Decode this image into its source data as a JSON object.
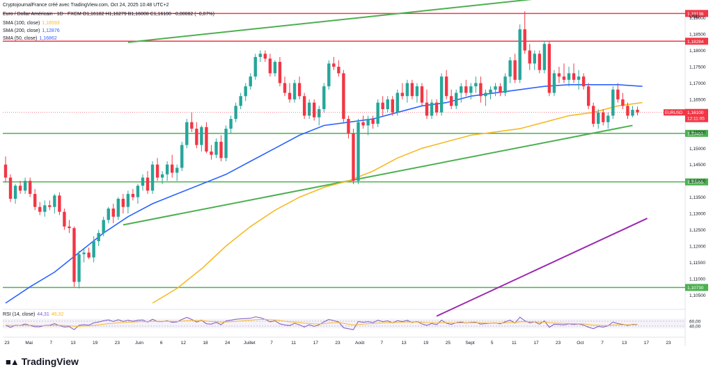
{
  "header": {
    "credit": "CryptojournalFrance créé avec TradingView.com, Oct 24, 2025 10:48 UTC+2",
    "symbol_line": "Euro / Dollar Américain · 1D · FXCM  O1,16182  H1,16279  B1,16008  C1,16100  −0,00082 (−0,07%)"
  },
  "indicators": [
    {
      "label": "SMA (100, close)",
      "value": "1,16593",
      "color": "#f7b924"
    },
    {
      "label": "SMA (200, close)",
      "value": "1,12876",
      "color": "#9c27b0"
    },
    {
      "label": "SMA (50, close)",
      "value": "1,16862",
      "color": "#2962ff"
    }
  ],
  "rsi_label": "RSI (14, close)",
  "rsi_value": "44,31",
  "rsi_ma_value": "46,32",
  "brand": "TradingView",
  "chart_data": {
    "type": "candlestick",
    "y_unit": "USD",
    "ylim": [
      1.1025,
      1.1925
    ],
    "y_ticks": [
      "1,19000",
      "1,18500",
      "1,18000",
      "1,17500",
      "1,17000",
      "1,16500",
      "1,16000",
      "1,15500",
      "1,15000",
      "1,14500",
      "1,14000",
      "1,13500",
      "1,13000",
      "1,12500",
      "1,12000",
      "1,11500",
      "1,11000",
      "1,10500"
    ],
    "x_ticks": [
      "23",
      "Mai",
      "7",
      "13",
      "19",
      "23",
      "Juin",
      "6",
      "12",
      "18",
      "24",
      "Juillet",
      "7",
      "11",
      "17",
      "23",
      "Août",
      "7",
      "13",
      "19",
      "25",
      "Sept",
      "5",
      "11",
      "17",
      "23",
      "Oct",
      "7",
      "13",
      "17",
      "23"
    ],
    "horizontal_levels": [
      {
        "value": 1.19136,
        "label": "1,19136",
        "color": "#f23645"
      },
      {
        "value": 1.18284,
        "label": "1,18284",
        "color": "#f23645"
      },
      {
        "value": 1.15457,
        "label": "1,15457",
        "color": "#4caf50"
      },
      {
        "value": 1.13968,
        "label": "1,13968",
        "color": "#4caf50"
      },
      {
        "value": 1.1073,
        "label": "1,10730",
        "color": "#4caf50"
      }
    ],
    "last_price": {
      "symbol": "EURUSD",
      "value": "1,16100",
      "countdown": "12:11:05",
      "color": "#f23645"
    },
    "rsi_levels": [
      "60,00",
      "40,00"
    ],
    "colors": {
      "up": "#26a69a",
      "down": "#f23645",
      "sma50": "#2962ff",
      "sma100": "#f7b924",
      "trend": "#4caf50",
      "channel": "#9c27b0"
    },
    "candles": [
      {
        "o": 1.145,
        "h": 1.1475,
        "l": 1.1395,
        "c": 1.141
      },
      {
        "o": 1.141,
        "h": 1.142,
        "l": 1.1335,
        "c": 1.1345
      },
      {
        "o": 1.1345,
        "h": 1.139,
        "l": 1.133,
        "c": 1.1385
      },
      {
        "o": 1.1385,
        "h": 1.14,
        "l": 1.136,
        "c": 1.137
      },
      {
        "o": 1.137,
        "h": 1.141,
        "l": 1.136,
        "c": 1.14
      },
      {
        "o": 1.14,
        "h": 1.141,
        "l": 1.135,
        "c": 1.136
      },
      {
        "o": 1.136,
        "h": 1.1375,
        "l": 1.131,
        "c": 1.132
      },
      {
        "o": 1.132,
        "h": 1.1335,
        "l": 1.1295,
        "c": 1.1305
      },
      {
        "o": 1.1305,
        "h": 1.134,
        "l": 1.129,
        "c": 1.1325
      },
      {
        "o": 1.1325,
        "h": 1.134,
        "l": 1.131,
        "c": 1.132
      },
      {
        "o": 1.132,
        "h": 1.136,
        "l": 1.13,
        "c": 1.1355
      },
      {
        "o": 1.1355,
        "h": 1.1365,
        "l": 1.1295,
        "c": 1.1305
      },
      {
        "o": 1.1305,
        "h": 1.1315,
        "l": 1.125,
        "c": 1.126
      },
      {
        "o": 1.126,
        "h": 1.128,
        "l": 1.124,
        "c": 1.1255
      },
      {
        "o": 1.1255,
        "h": 1.126,
        "l": 1.1075,
        "c": 1.109
      },
      {
        "o": 1.109,
        "h": 1.1185,
        "l": 1.107,
        "c": 1.1175
      },
      {
        "o": 1.1175,
        "h": 1.119,
        "l": 1.115,
        "c": 1.118
      },
      {
        "o": 1.118,
        "h": 1.1195,
        "l": 1.116,
        "c": 1.1165
      },
      {
        "o": 1.1165,
        "h": 1.123,
        "l": 1.115,
        "c": 1.1215
      },
      {
        "o": 1.1215,
        "h": 1.125,
        "l": 1.12,
        "c": 1.124
      },
      {
        "o": 1.124,
        "h": 1.129,
        "l": 1.123,
        "c": 1.128
      },
      {
        "o": 1.128,
        "h": 1.132,
        "l": 1.127,
        "c": 1.1315
      },
      {
        "o": 1.1315,
        "h": 1.133,
        "l": 1.127,
        "c": 1.129
      },
      {
        "o": 1.129,
        "h": 1.135,
        "l": 1.128,
        "c": 1.1345
      },
      {
        "o": 1.1345,
        "h": 1.136,
        "l": 1.13,
        "c": 1.132
      },
      {
        "o": 1.132,
        "h": 1.137,
        "l": 1.13,
        "c": 1.136
      },
      {
        "o": 1.136,
        "h": 1.1375,
        "l": 1.134,
        "c": 1.135
      },
      {
        "o": 1.135,
        "h": 1.139,
        "l": 1.133,
        "c": 1.1385
      },
      {
        "o": 1.1385,
        "h": 1.142,
        "l": 1.137,
        "c": 1.141
      },
      {
        "o": 1.141,
        "h": 1.143,
        "l": 1.136,
        "c": 1.137
      },
      {
        "o": 1.137,
        "h": 1.146,
        "l": 1.136,
        "c": 1.145
      },
      {
        "o": 1.145,
        "h": 1.147,
        "l": 1.14,
        "c": 1.141
      },
      {
        "o": 1.141,
        "h": 1.143,
        "l": 1.139,
        "c": 1.142
      },
      {
        "o": 1.142,
        "h": 1.146,
        "l": 1.14,
        "c": 1.145
      },
      {
        "o": 1.145,
        "h": 1.148,
        "l": 1.141,
        "c": 1.1425
      },
      {
        "o": 1.1425,
        "h": 1.145,
        "l": 1.14,
        "c": 1.144
      },
      {
        "o": 1.144,
        "h": 1.152,
        "l": 1.143,
        "c": 1.151
      },
      {
        "o": 1.151,
        "h": 1.159,
        "l": 1.15,
        "c": 1.158
      },
      {
        "o": 1.158,
        "h": 1.161,
        "l": 1.155,
        "c": 1.156
      },
      {
        "o": 1.156,
        "h": 1.158,
        "l": 1.15,
        "c": 1.151
      },
      {
        "o": 1.151,
        "h": 1.157,
        "l": 1.149,
        "c": 1.1565
      },
      {
        "o": 1.1565,
        "h": 1.158,
        "l": 1.1485,
        "c": 1.149
      },
      {
        "o": 1.149,
        "h": 1.151,
        "l": 1.1465,
        "c": 1.148
      },
      {
        "o": 1.148,
        "h": 1.153,
        "l": 1.147,
        "c": 1.152
      },
      {
        "o": 1.152,
        "h": 1.154,
        "l": 1.146,
        "c": 1.147
      },
      {
        "o": 1.147,
        "h": 1.157,
        "l": 1.146,
        "c": 1.156
      },
      {
        "o": 1.156,
        "h": 1.16,
        "l": 1.1545,
        "c": 1.159
      },
      {
        "o": 1.159,
        "h": 1.164,
        "l": 1.158,
        "c": 1.163
      },
      {
        "o": 1.163,
        "h": 1.167,
        "l": 1.162,
        "c": 1.166
      },
      {
        "o": 1.166,
        "h": 1.17,
        "l": 1.1645,
        "c": 1.169
      },
      {
        "o": 1.169,
        "h": 1.173,
        "l": 1.168,
        "c": 1.172
      },
      {
        "o": 1.172,
        "h": 1.179,
        "l": 1.171,
        "c": 1.178
      },
      {
        "o": 1.178,
        "h": 1.18,
        "l": 1.1765,
        "c": 1.179
      },
      {
        "o": 1.179,
        "h": 1.18,
        "l": 1.1765,
        "c": 1.1775
      },
      {
        "o": 1.1775,
        "h": 1.179,
        "l": 1.172,
        "c": 1.173
      },
      {
        "o": 1.173,
        "h": 1.177,
        "l": 1.172,
        "c": 1.1765
      },
      {
        "o": 1.1765,
        "h": 1.178,
        "l": 1.169,
        "c": 1.17
      },
      {
        "o": 1.17,
        "h": 1.172,
        "l": 1.166,
        "c": 1.167
      },
      {
        "o": 1.167,
        "h": 1.17,
        "l": 1.164,
        "c": 1.165
      },
      {
        "o": 1.165,
        "h": 1.171,
        "l": 1.164,
        "c": 1.17
      },
      {
        "o": 1.17,
        "h": 1.172,
        "l": 1.165,
        "c": 1.166
      },
      {
        "o": 1.166,
        "h": 1.167,
        "l": 1.159,
        "c": 1.16
      },
      {
        "o": 1.16,
        "h": 1.165,
        "l": 1.159,
        "c": 1.164
      },
      {
        "o": 1.164,
        "h": 1.165,
        "l": 1.1585,
        "c": 1.1595
      },
      {
        "o": 1.1595,
        "h": 1.163,
        "l": 1.157,
        "c": 1.162
      },
      {
        "o": 1.162,
        "h": 1.17,
        "l": 1.161,
        "c": 1.169
      },
      {
        "o": 1.169,
        "h": 1.177,
        "l": 1.168,
        "c": 1.176
      },
      {
        "o": 1.176,
        "h": 1.178,
        "l": 1.174,
        "c": 1.175
      },
      {
        "o": 1.175,
        "h": 1.177,
        "l": 1.172,
        "c": 1.173
      },
      {
        "o": 1.173,
        "h": 1.174,
        "l": 1.158,
        "c": 1.159
      },
      {
        "o": 1.159,
        "h": 1.16,
        "l": 1.153,
        "c": 1.1545
      },
      {
        "o": 1.1545,
        "h": 1.156,
        "l": 1.139,
        "c": 1.14
      },
      {
        "o": 1.14,
        "h": 1.159,
        "l": 1.139,
        "c": 1.158
      },
      {
        "o": 1.158,
        "h": 1.16,
        "l": 1.156,
        "c": 1.157
      },
      {
        "o": 1.157,
        "h": 1.16,
        "l": 1.154,
        "c": 1.159
      },
      {
        "o": 1.159,
        "h": 1.16,
        "l": 1.156,
        "c": 1.1575
      },
      {
        "o": 1.1575,
        "h": 1.165,
        "l": 1.1565,
        "c": 1.164
      },
      {
        "o": 1.164,
        "h": 1.166,
        "l": 1.16,
        "c": 1.162
      },
      {
        "o": 1.162,
        "h": 1.166,
        "l": 1.161,
        "c": 1.165
      },
      {
        "o": 1.165,
        "h": 1.166,
        "l": 1.16,
        "c": 1.161
      },
      {
        "o": 1.161,
        "h": 1.168,
        "l": 1.16,
        "c": 1.167
      },
      {
        "o": 1.167,
        "h": 1.17,
        "l": 1.165,
        "c": 1.166
      },
      {
        "o": 1.166,
        "h": 1.171,
        "l": 1.164,
        "c": 1.17
      },
      {
        "o": 1.17,
        "h": 1.171,
        "l": 1.165,
        "c": 1.166
      },
      {
        "o": 1.166,
        "h": 1.17,
        "l": 1.164,
        "c": 1.169
      },
      {
        "o": 1.169,
        "h": 1.17,
        "l": 1.163,
        "c": 1.164
      },
      {
        "o": 1.164,
        "h": 1.168,
        "l": 1.159,
        "c": 1.16
      },
      {
        "o": 1.16,
        "h": 1.165,
        "l": 1.159,
        "c": 1.164
      },
      {
        "o": 1.164,
        "h": 1.165,
        "l": 1.16,
        "c": 1.161
      },
      {
        "o": 1.161,
        "h": 1.173,
        "l": 1.16,
        "c": 1.172
      },
      {
        "o": 1.172,
        "h": 1.174,
        "l": 1.165,
        "c": 1.166
      },
      {
        "o": 1.166,
        "h": 1.168,
        "l": 1.162,
        "c": 1.163
      },
      {
        "o": 1.163,
        "h": 1.168,
        "l": 1.162,
        "c": 1.167
      },
      {
        "o": 1.167,
        "h": 1.17,
        "l": 1.164,
        "c": 1.169
      },
      {
        "o": 1.169,
        "h": 1.171,
        "l": 1.166,
        "c": 1.167
      },
      {
        "o": 1.167,
        "h": 1.17,
        "l": 1.165,
        "c": 1.169
      },
      {
        "o": 1.169,
        "h": 1.172,
        "l": 1.167,
        "c": 1.17
      },
      {
        "o": 1.17,
        "h": 1.172,
        "l": 1.164,
        "c": 1.166
      },
      {
        "o": 1.166,
        "h": 1.168,
        "l": 1.163,
        "c": 1.167
      },
      {
        "o": 1.167,
        "h": 1.169,
        "l": 1.165,
        "c": 1.168
      },
      {
        "o": 1.168,
        "h": 1.17,
        "l": 1.166,
        "c": 1.169
      },
      {
        "o": 1.169,
        "h": 1.17,
        "l": 1.166,
        "c": 1.167
      },
      {
        "o": 1.167,
        "h": 1.173,
        "l": 1.166,
        "c": 1.172
      },
      {
        "o": 1.172,
        "h": 1.178,
        "l": 1.17,
        "c": 1.177
      },
      {
        "o": 1.177,
        "h": 1.179,
        "l": 1.17,
        "c": 1.171
      },
      {
        "o": 1.171,
        "h": 1.188,
        "l": 1.17,
        "c": 1.1865
      },
      {
        "o": 1.1865,
        "h": 1.192,
        "l": 1.179,
        "c": 1.18
      },
      {
        "o": 1.18,
        "h": 1.182,
        "l": 1.174,
        "c": 1.176
      },
      {
        "o": 1.176,
        "h": 1.18,
        "l": 1.174,
        "c": 1.179
      },
      {
        "o": 1.179,
        "h": 1.18,
        "l": 1.173,
        "c": 1.174
      },
      {
        "o": 1.174,
        "h": 1.183,
        "l": 1.173,
        "c": 1.182
      },
      {
        "o": 1.182,
        "h": 1.183,
        "l": 1.166,
        "c": 1.167
      },
      {
        "o": 1.167,
        "h": 1.174,
        "l": 1.166,
        "c": 1.173
      },
      {
        "o": 1.173,
        "h": 1.175,
        "l": 1.17,
        "c": 1.172
      },
      {
        "o": 1.172,
        "h": 1.176,
        "l": 1.17,
        "c": 1.171
      },
      {
        "o": 1.171,
        "h": 1.175,
        "l": 1.169,
        "c": 1.173
      },
      {
        "o": 1.173,
        "h": 1.176,
        "l": 1.17,
        "c": 1.171
      },
      {
        "o": 1.171,
        "h": 1.174,
        "l": 1.168,
        "c": 1.172
      },
      {
        "o": 1.172,
        "h": 1.173,
        "l": 1.168,
        "c": 1.169
      },
      {
        "o": 1.169,
        "h": 1.17,
        "l": 1.162,
        "c": 1.163
      },
      {
        "o": 1.163,
        "h": 1.164,
        "l": 1.1565,
        "c": 1.1575
      },
      {
        "o": 1.1575,
        "h": 1.162,
        "l": 1.156,
        "c": 1.161
      },
      {
        "o": 1.161,
        "h": 1.162,
        "l": 1.157,
        "c": 1.158
      },
      {
        "o": 1.158,
        "h": 1.161,
        "l": 1.156,
        "c": 1.16
      },
      {
        "o": 1.16,
        "h": 1.169,
        "l": 1.159,
        "c": 1.168
      },
      {
        "o": 1.168,
        "h": 1.17,
        "l": 1.164,
        "c": 1.165
      },
      {
        "o": 1.165,
        "h": 1.167,
        "l": 1.162,
        "c": 1.163
      },
      {
        "o": 1.163,
        "h": 1.164,
        "l": 1.159,
        "c": 1.16
      },
      {
        "o": 1.16,
        "h": 1.163,
        "l": 1.1595,
        "c": 1.1618
      },
      {
        "o": 1.16182,
        "h": 1.16279,
        "l": 1.16008,
        "c": 1.161
      }
    ],
    "sma50": [
      [
        0,
        1.1025
      ],
      [
        5,
        1.1075
      ],
      [
        10,
        1.112
      ],
      [
        15,
        1.118
      ],
      [
        20,
        1.124
      ],
      [
        25,
        1.129
      ],
      [
        30,
        1.133
      ],
      [
        35,
        1.136
      ],
      [
        40,
        1.139
      ],
      [
        45,
        1.142
      ],
      [
        50,
        1.146
      ],
      [
        55,
        1.15
      ],
      [
        60,
        1.154
      ],
      [
        65,
        1.157
      ],
      [
        70,
        1.158
      ],
      [
        75,
        1.159
      ],
      [
        80,
        1.161
      ],
      [
        85,
        1.163
      ],
      [
        90,
        1.164
      ],
      [
        95,
        1.166
      ],
      [
        100,
        1.167
      ],
      [
        105,
        1.168
      ],
      [
        110,
        1.169
      ],
      [
        115,
        1.1695
      ],
      [
        120,
        1.1695
      ],
      [
        125,
        1.1695
      ],
      [
        130,
        1.169
      ]
    ],
    "sma100": [
      [
        30,
        1.1025
      ],
      [
        35,
        1.107
      ],
      [
        40,
        1.113
      ],
      [
        45,
        1.12
      ],
      [
        50,
        1.126
      ],
      [
        55,
        1.131
      ],
      [
        60,
        1.135
      ],
      [
        65,
        1.138
      ],
      [
        70,
        1.14
      ],
      [
        75,
        1.143
      ],
      [
        80,
        1.147
      ],
      [
        85,
        1.15
      ],
      [
        90,
        1.152
      ],
      [
        95,
        1.154
      ],
      [
        100,
        1.155
      ],
      [
        105,
        1.156
      ],
      [
        110,
        1.158
      ],
      [
        115,
        1.16
      ],
      [
        120,
        1.161
      ],
      [
        125,
        1.163
      ],
      [
        130,
        1.164
      ]
    ],
    "trendlines": [
      {
        "color": "#4caf50",
        "points": [
          [
            25,
            1.1825
          ],
          [
            125,
            1.1985
          ]
        ]
      },
      {
        "color": "#4caf50",
        "points": [
          [
            24,
            1.1265
          ],
          [
            128,
            1.157
          ]
        ]
      },
      {
        "color": "#9c27b0",
        "points": [
          [
            88,
            1.0985
          ],
          [
            131,
            1.1285
          ]
        ]
      }
    ]
  }
}
